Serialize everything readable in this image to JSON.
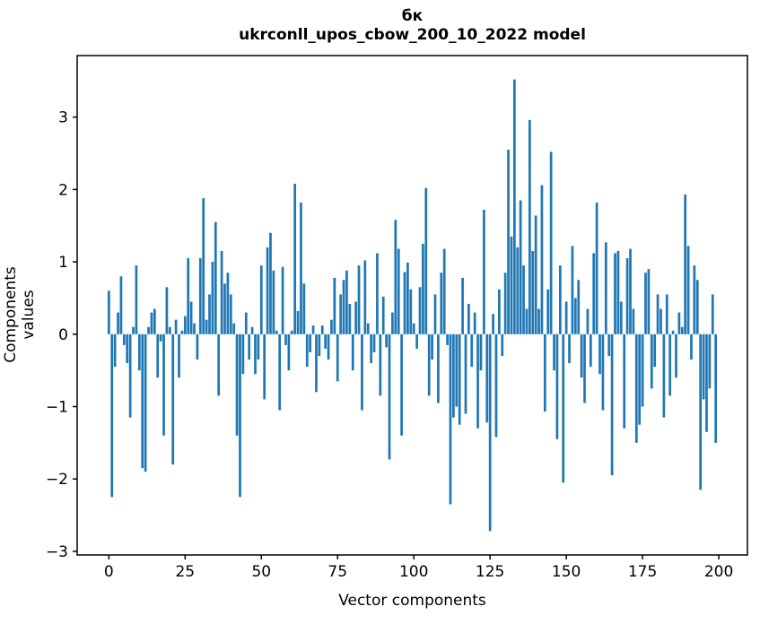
{
  "chart_data": {
    "type": "bar",
    "title": "бк",
    "subtitle": "ukrconll_upos_cbow_200_10_2022 model",
    "xlabel": "Vector components",
    "ylabel": "Components values",
    "bar_color": "#1f77b4",
    "axis_color": "#000000",
    "background_color": "#ffffff",
    "legend": "none",
    "grid": false,
    "x_start": 0,
    "n_components": 200,
    "xlim": [
      -10.4,
      209.4
    ],
    "ylim": [
      -3.05,
      3.85
    ],
    "xticks": [
      0,
      25,
      50,
      75,
      100,
      125,
      150,
      175,
      200
    ],
    "xticklabels": [
      "0",
      "25",
      "50",
      "75",
      "100",
      "125",
      "150",
      "175",
      "200"
    ],
    "yticks": [
      -3,
      -2,
      -1,
      0,
      1,
      2,
      3
    ],
    "yticklabels": [
      "−3",
      "−2",
      "−1",
      "0",
      "1",
      "2",
      "3"
    ],
    "values": [
      0.6,
      -2.25,
      -0.45,
      0.3,
      0.8,
      -0.15,
      -0.4,
      -1.15,
      0.1,
      0.95,
      -0.5,
      -1.85,
      -1.9,
      0.1,
      0.3,
      0.35,
      -0.6,
      -0.1,
      -1.4,
      0.65,
      0.1,
      -1.8,
      0.2,
      -0.6,
      0.05,
      0.25,
      1.05,
      0.45,
      0.15,
      -0.35,
      1.05,
      1.88,
      0.2,
      0.55,
      1.0,
      1.55,
      -0.85,
      1.15,
      0.7,
      0.85,
      0.55,
      0.15,
      -1.4,
      -2.25,
      -0.55,
      0.3,
      -0.35,
      0.1,
      -0.55,
      -0.35,
      0.95,
      -0.9,
      1.2,
      1.4,
      0.88,
      0.05,
      -1.05,
      0.93,
      -0.15,
      -0.5,
      0.05,
      2.08,
      0.32,
      1.82,
      0.7,
      -0.45,
      -0.25,
      0.12,
      -0.8,
      -0.3,
      0.12,
      -0.2,
      -0.35,
      0.2,
      0.78,
      -0.65,
      0.55,
      0.75,
      0.88,
      0.42,
      -0.5,
      0.45,
      0.95,
      -1.05,
      1.02,
      0.15,
      -0.4,
      -0.25,
      1.12,
      -0.85,
      0.52,
      -0.18,
      -1.73,
      0.3,
      1.58,
      1.18,
      -1.4,
      0.86,
      0.99,
      0.62,
      0.15,
      -0.2,
      0.65,
      1.25,
      2.02,
      -0.85,
      -0.35,
      0.55,
      -0.95,
      0.85,
      1.18,
      -0.15,
      -2.35,
      -1.15,
      -1.0,
      -1.25,
      0.78,
      -1.1,
      0.42,
      -0.45,
      0.3,
      -1.3,
      -0.5,
      1.72,
      -1.22,
      -2.72,
      0.28,
      -1.42,
      0.62,
      -0.3,
      0.85,
      2.55,
      1.35,
      3.52,
      1.2,
      1.85,
      0.95,
      0.35,
      2.96,
      1.15,
      1.64,
      0.35,
      2.06,
      -1.07,
      0.62,
      2.52,
      -0.5,
      -1.45,
      0.95,
      -2.05,
      0.45,
      -0.4,
      1.22,
      0.5,
      0.75,
      -0.6,
      -0.95,
      0.35,
      -0.45,
      1.12,
      1.82,
      -0.55,
      -1.05,
      1.27,
      -0.3,
      -1.95,
      1.12,
      1.15,
      0.45,
      -1.3,
      1.05,
      1.18,
      0.35,
      -1.5,
      -1.25,
      -1.0,
      0.85,
      0.9,
      -0.75,
      -0.45,
      0.55,
      0.35,
      -1.15,
      0.55,
      -0.85,
      0.05,
      -0.6,
      0.3,
      0.1,
      1.93,
      1.22,
      -0.35,
      0.95,
      0.75,
      -2.15,
      -0.9,
      -1.35,
      -0.75,
      0.55,
      -1.5
    ]
  }
}
